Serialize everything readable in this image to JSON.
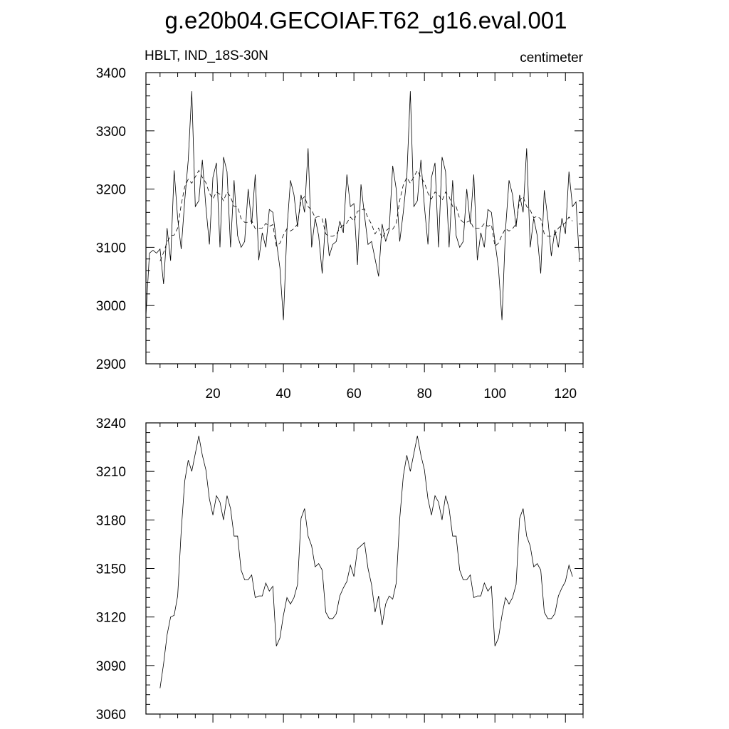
{
  "figure": {
    "title": "g.e20b04.GECOIAF.T62_g16.eval.001"
  },
  "chart_data": [
    {
      "type": "line",
      "title": "HBLT, IND_18S-30N",
      "units": "centimeter",
      "xlim": [
        1,
        125
      ],
      "ylim": [
        2900,
        3400
      ],
      "x_major_ticks": [
        20,
        40,
        60,
        80,
        100,
        120
      ],
      "x_minor_step": 5,
      "y_major_ticks": [
        2900,
        3000,
        3100,
        3200,
        3300,
        3400
      ],
      "y_minor_step": 20,
      "series": [
        {
          "style": "solid",
          "x_start": 1,
          "values": [
            2983,
            3090,
            3095,
            3090,
            3097,
            3037,
            3133,
            3077,
            3232,
            3150,
            3097,
            3180,
            3250,
            3368,
            3170,
            3180,
            3250,
            3170,
            3105,
            3220,
            3245,
            3100,
            3255,
            3230,
            3100,
            3215,
            3120,
            3100,
            3110,
            3200,
            3140,
            3225,
            3078,
            3125,
            3100,
            3165,
            3160,
            3110,
            3065,
            2975,
            3130,
            3215,
            3190,
            3135,
            3190,
            3160,
            3270,
            3100,
            3150,
            3120,
            3055,
            3150,
            3085,
            3105,
            3110,
            3145,
            3125,
            3225,
            3170,
            3175,
            3070,
            3208,
            3155,
            3105,
            3110,
            3080,
            3050,
            3140,
            3110,
            3130,
            3240,
            3200,
            3110,
            3160,
            3220,
            3368,
            3170,
            3180,
            3250,
            3170,
            3105,
            3220,
            3245,
            3100,
            3255,
            3230,
            3100,
            3215,
            3120,
            3100,
            3110,
            3200,
            3140,
            3225,
            3078,
            3125,
            3100,
            3165,
            3160,
            3110,
            3065,
            2975,
            3130,
            3215,
            3190,
            3135,
            3190,
            3160,
            3270,
            3100,
            3150,
            3120,
            3055,
            3198,
            3150,
            3085,
            3130,
            3100,
            3150,
            3123,
            3230,
            3170,
            3178,
            3075
          ]
        },
        {
          "style": "dashed",
          "x_start": 5,
          "values": [
            3076,
            3091,
            3109,
            3120,
            3121,
            3133,
            3173,
            3204,
            3217,
            3210,
            3221,
            3232,
            3220,
            3211,
            3193,
            3183,
            3195,
            3191,
            3180,
            3195,
            3187,
            3170,
            3170,
            3149,
            3143,
            3143,
            3146,
            3132,
            3133,
            3133,
            3141,
            3136,
            3139,
            3102,
            3107,
            3121,
            3132,
            3128,
            3132,
            3140,
            3181,
            3187,
            3170,
            3164,
            3151,
            3153,
            3149,
            3123,
            3119,
            3119,
            3122,
            3133,
            3138,
            3142,
            3152,
            3145,
            3162,
            3164,
            3166,
            3150,
            3140,
            3123,
            3133,
            3115,
            3128,
            3133,
            3131,
            3141,
            3181,
            3207,
            3220,
            3210,
            3221,
            3232,
            3220,
            3211,
            3193,
            3183,
            3195,
            3191,
            3180,
            3195,
            3187,
            3170,
            3170,
            3149,
            3143,
            3143,
            3146,
            3132,
            3133,
            3133,
            3141,
            3136,
            3139,
            3102,
            3107,
            3121,
            3132,
            3128,
            3132,
            3140,
            3181,
            3187,
            3170,
            3164,
            3151,
            3153,
            3149,
            3123,
            3119,
            3119,
            3122,
            3133,
            3138,
            3142,
            3152,
            3145
          ]
        }
      ]
    },
    {
      "type": "line",
      "xlim": [
        1,
        125
      ],
      "ylim": [
        3060,
        3240
      ],
      "x_major_ticks": [
        20,
        40,
        60,
        80,
        100,
        120
      ],
      "x_minor_step": 5,
      "y_major_ticks": [
        3060,
        3090,
        3120,
        3150,
        3180,
        3210,
        3240
      ],
      "y_minor_step": 6,
      "series": [
        {
          "style": "solid",
          "x_start": 5,
          "values": [
            3076,
            3091,
            3109,
            3120,
            3121,
            3133,
            3173,
            3204,
            3217,
            3210,
            3221,
            3232,
            3220,
            3211,
            3193,
            3183,
            3195,
            3191,
            3180,
            3195,
            3187,
            3170,
            3170,
            3149,
            3143,
            3143,
            3146,
            3132,
            3133,
            3133,
            3141,
            3136,
            3139,
            3102,
            3107,
            3121,
            3132,
            3128,
            3132,
            3140,
            3181,
            3187,
            3170,
            3164,
            3151,
            3153,
            3149,
            3123,
            3119,
            3119,
            3122,
            3133,
            3138,
            3142,
            3152,
            3145,
            3162,
            3164,
            3166,
            3150,
            3140,
            3123,
            3133,
            3115,
            3128,
            3133,
            3131,
            3141,
            3181,
            3207,
            3220,
            3210,
            3221,
            3232,
            3220,
            3211,
            3193,
            3183,
            3195,
            3191,
            3180,
            3195,
            3187,
            3170,
            3170,
            3149,
            3143,
            3143,
            3146,
            3132,
            3133,
            3133,
            3141,
            3136,
            3139,
            3102,
            3107,
            3121,
            3132,
            3128,
            3132,
            3140,
            3181,
            3187,
            3170,
            3164,
            3151,
            3153,
            3149,
            3123,
            3119,
            3119,
            3122,
            3133,
            3138,
            3142,
            3152,
            3145
          ]
        }
      ]
    }
  ]
}
